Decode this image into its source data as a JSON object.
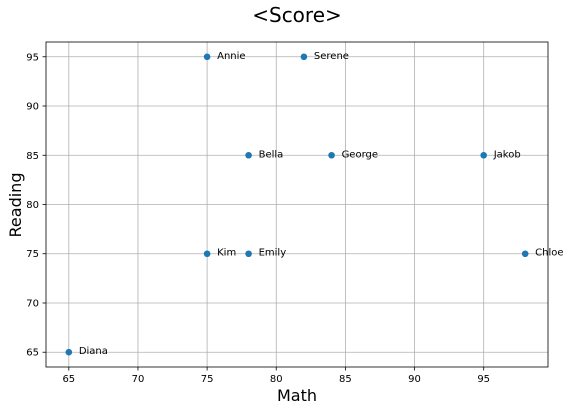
{
  "chart_data": {
    "type": "scatter",
    "title": "<Score>",
    "xlabel": "Math",
    "ylabel": "Reading",
    "xlim": [
      63.35,
      99.65
    ],
    "ylim": [
      63.5,
      96.5
    ],
    "xticks": [
      65,
      70,
      75,
      80,
      85,
      90,
      95
    ],
    "yticks": [
      65,
      70,
      75,
      80,
      85,
      90,
      95
    ],
    "grid": true,
    "marker_color": "#1f77b4",
    "points": [
      {
        "label": "Annie",
        "x": 75,
        "y": 95
      },
      {
        "label": "Serene",
        "x": 82,
        "y": 95
      },
      {
        "label": "Bella",
        "x": 78,
        "y": 85
      },
      {
        "label": "George",
        "x": 84,
        "y": 85
      },
      {
        "label": "Jakob",
        "x": 95,
        "y": 85
      },
      {
        "label": "Kim",
        "x": 75,
        "y": 75
      },
      {
        "label": "Emily",
        "x": 78,
        "y": 75
      },
      {
        "label": "Chloe",
        "x": 98,
        "y": 75
      },
      {
        "label": "Diana",
        "x": 65,
        "y": 65
      }
    ]
  }
}
